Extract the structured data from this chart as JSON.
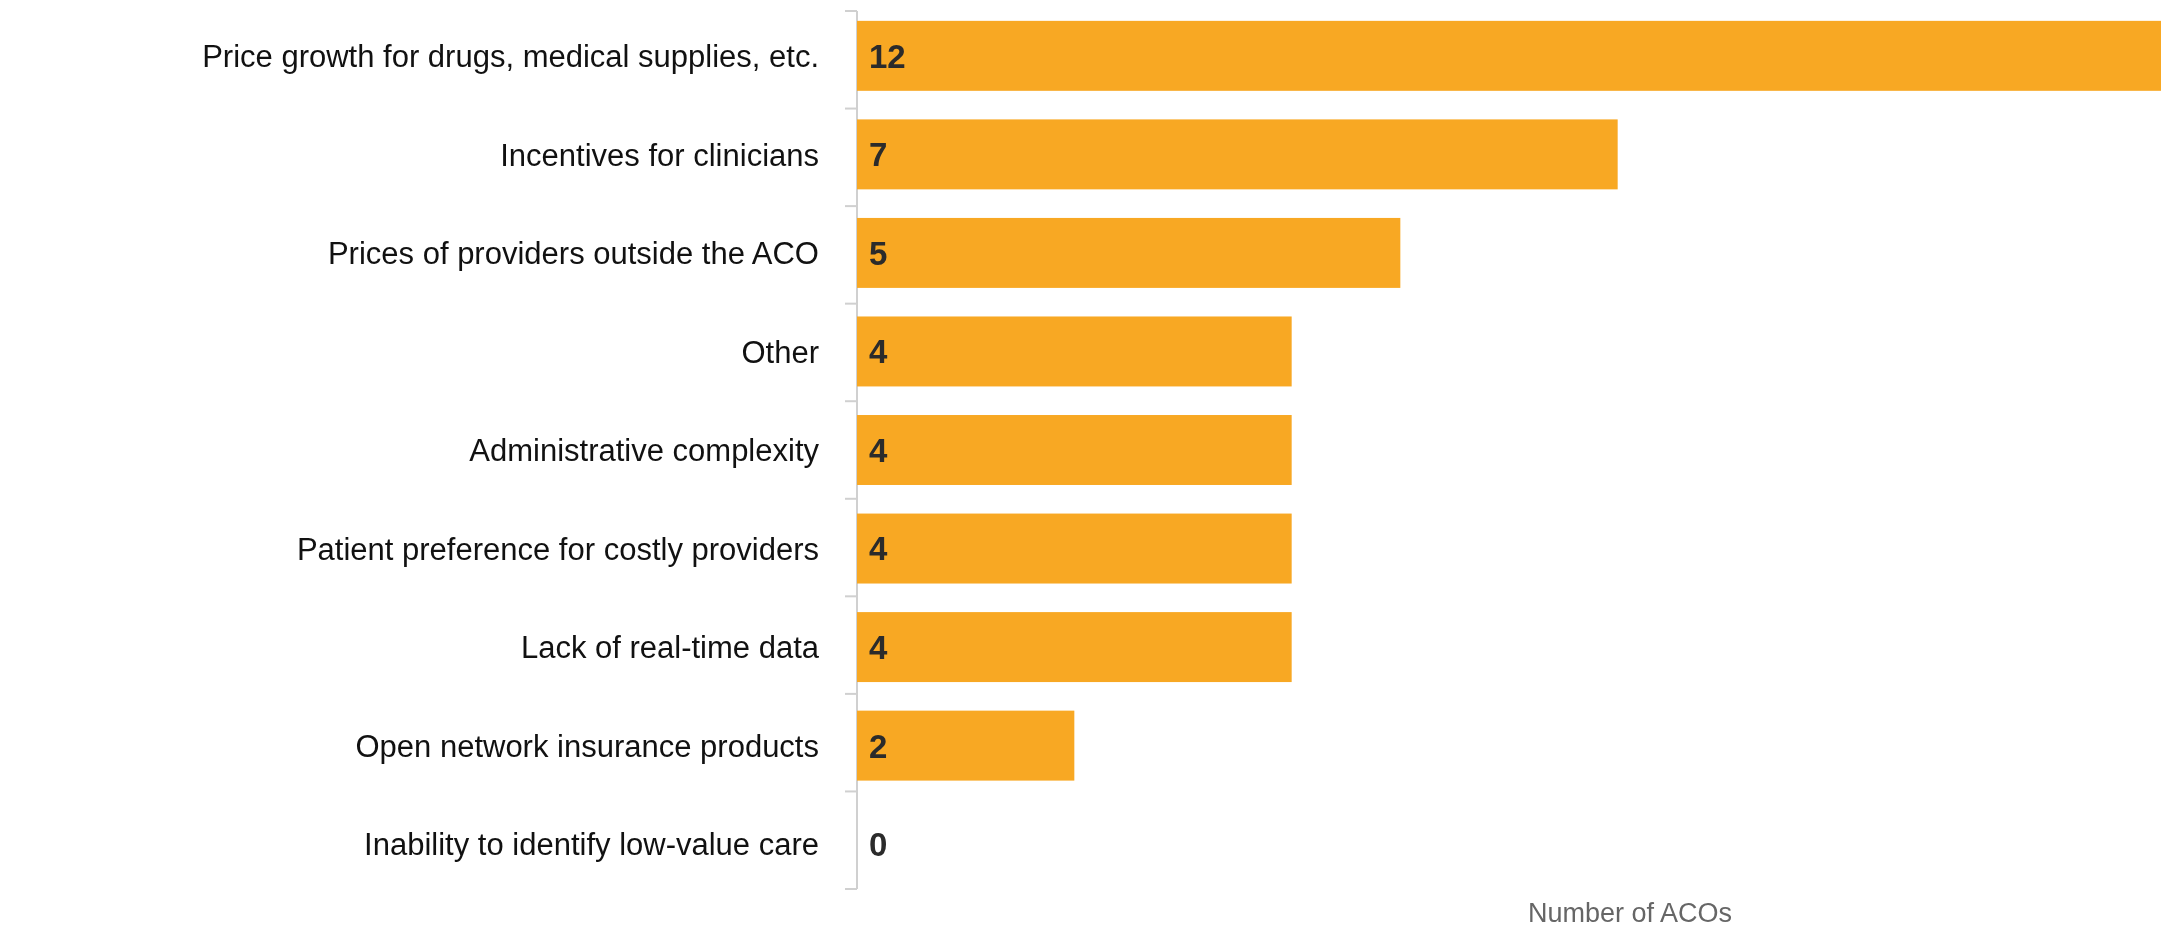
{
  "chart_data": {
    "type": "bar",
    "orientation": "horizontal",
    "xlabel": "Number of ACOs",
    "categories": [
      "Price growth for drugs, medical supplies, etc.",
      "Incentives for clinicians",
      "Prices of providers outside the ACO",
      "Other",
      "Administrative complexity",
      "Patient preference for costly providers",
      "Lack of real-time data",
      "Open network insurance products",
      "Inability to identify low-value care"
    ],
    "values": [
      12,
      7,
      5,
      4,
      4,
      4,
      4,
      2,
      0
    ],
    "color": "#f8a823",
    "data_labels": true
  }
}
